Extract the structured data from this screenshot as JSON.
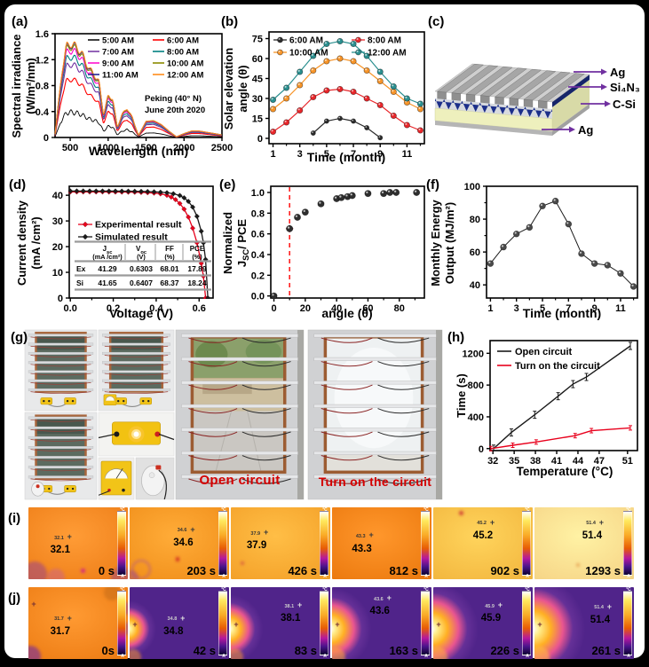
{
  "figure": {
    "bg": "#000000",
    "content_bg": "#ffffff"
  },
  "panels": {
    "a": {
      "label": "(a)"
    },
    "b": {
      "label": "(b)"
    },
    "c": {
      "label": "(c)"
    },
    "d": {
      "label": "(d)"
    },
    "e": {
      "label": "(e)"
    },
    "f": {
      "label": "(f)"
    },
    "g": {
      "label": "(g)"
    },
    "h": {
      "label": "(h)"
    },
    "i": {
      "label": "(i)"
    },
    "j": {
      "label": "(j)"
    }
  },
  "panel_c": {
    "layers": [
      {
        "name": "Ag"
      },
      {
        "name": "Si₄N₃"
      },
      {
        "name": "C-Si"
      },
      {
        "name": "Ag"
      }
    ],
    "arrow_color": "#7030a0",
    "colors": {
      "ridge": "#a6a6a6",
      "nitride": "#1c2f8a",
      "silicon": "#eef0bd",
      "bottom": "#b5b5b5"
    }
  },
  "panel_g": {
    "caption_open": "Open circuit",
    "caption_on": "Turn on the circuit",
    "caption_color": "#d40000"
  },
  "thermal": {
    "colorbar_top": "°C",
    "colorbar_bottom": "A"
  },
  "panel_i": {
    "frames": [
      {
        "temp": "32.1",
        "time": "0 s",
        "base": "#f0821c"
      },
      {
        "temp": "34.6",
        "time": "203 s",
        "base": "#f2921e"
      },
      {
        "temp": "37.9",
        "time": "426 s",
        "base": "#f5a42c"
      },
      {
        "temp": "43.3",
        "time": "812 s",
        "base": "#ee7d12"
      },
      {
        "temp": "45.2",
        "time": "902 s",
        "base": "#f4ba42"
      },
      {
        "temp": "51.4",
        "time": "1293 s",
        "base": "#f7d88a"
      }
    ]
  },
  "panel_j": {
    "frames": [
      {
        "temp": "31.7",
        "time": "0s",
        "base": "#ef8018",
        "style": "orange",
        "spot": 0
      },
      {
        "temp": "34.8",
        "time": "42 s",
        "base": "#50248a",
        "style": "hotspot",
        "spot": 20
      },
      {
        "temp": "38.1",
        "time": "83 s",
        "base": "#50248a",
        "style": "hotspot",
        "spot": 24
      },
      {
        "temp": "43.6",
        "time": "163 s",
        "base": "#50248a",
        "style": "hotspot",
        "spot": 29
      },
      {
        "temp": "45.9",
        "time": "226 s",
        "base": "#50248a",
        "style": "hotspot",
        "spot": 33
      },
      {
        "temp": "51.4",
        "time": "261 s",
        "base": "#50248a",
        "style": "hotspot",
        "spot": 37
      }
    ]
  },
  "chart_data": [
    {
      "id": "a",
      "type": "line",
      "xlabel": "Wavelength (nm)",
      "ylabel": [
        "Spectral irradiance",
        "(W/m²/nm)"
      ],
      "annotation": [
        "Peking (40° N)",
        "June 20th 2020"
      ],
      "xlim": [
        300,
        2500
      ],
      "ylim": [
        0,
        1.6
      ],
      "x_ticks": [
        "500",
        "1000",
        "1500",
        "2000",
        "2500"
      ],
      "y_ticks": [
        "0",
        "0.4",
        "0.8",
        "1.2",
        "1.6"
      ],
      "legend_position": "top-right-2col",
      "base_x": [
        300,
        350,
        400,
        450,
        500,
        550,
        600,
        650,
        700,
        760,
        820,
        880,
        940,
        1000,
        1060,
        1120,
        1180,
        1250,
        1320,
        1400,
        1500,
        1600,
        1700,
        1800,
        1900,
        2000,
        2100,
        2200,
        2350,
        2500
      ],
      "base_values": [
        0.05,
        0.6,
        1.1,
        1.4,
        1.45,
        1.42,
        1.38,
        1.3,
        1.18,
        1.04,
        0.97,
        0.85,
        0.35,
        0.64,
        0.6,
        0.15,
        0.35,
        0.45,
        0.3,
        0.03,
        0.25,
        0.26,
        0.2,
        0.1,
        0.01,
        0.06,
        0.1,
        0.1,
        0.07,
        0.04
      ],
      "series": [
        {
          "name": "5:00 AM",
          "color": "#000000",
          "scale": 0.27
        },
        {
          "name": "6:00 AM",
          "color": "#ff0000",
          "scale": 0.62
        },
        {
          "name": "7:00 AM",
          "color": "#7030a0",
          "scale": 0.78
        },
        {
          "name": "8:00 AM",
          "color": "#008080",
          "scale": 0.86
        },
        {
          "name": "9:00 AM",
          "color": "#ff00cc",
          "scale": 0.93
        },
        {
          "name": "10:00 AM",
          "color": "#8a8a00",
          "scale": 0.97
        },
        {
          "name": "11:00 AM",
          "color": "#16168c",
          "scale": 0.99
        },
        {
          "name": "12:00 AM",
          "color": "#ff8c1a",
          "scale": 1.0
        }
      ]
    },
    {
      "id": "b",
      "type": "line",
      "xlabel": "Time (month)",
      "ylabel": [
        "Solar elevation",
        "angle (θ)"
      ],
      "xlim": [
        0.7,
        12.3
      ],
      "ylim": [
        -4,
        80
      ],
      "x_ticks": [
        "1",
        "3",
        "5",
        "7",
        "9",
        "11"
      ],
      "x_minor": [
        2,
        4,
        6,
        8,
        10,
        12
      ],
      "y_ticks": [
        "0",
        "15",
        "30",
        "45",
        "60",
        "75"
      ],
      "categories": [
        1,
        2,
        3,
        4,
        5,
        6,
        7,
        8,
        9,
        10,
        11,
        12
      ],
      "series": [
        {
          "name": "6:00 AM",
          "color": "#2b2b2b",
          "values": [
            null,
            null,
            null,
            4,
            13,
            15,
            13,
            8,
            0.5,
            null,
            null,
            null
          ]
        },
        {
          "name": "8:00 AM",
          "color": "#e8262a",
          "values": [
            5,
            12,
            21,
            31,
            36,
            37,
            35,
            30,
            25,
            17,
            10,
            6
          ]
        },
        {
          "name": "10:00 AM",
          "color": "#f79428",
          "values": [
            22,
            30,
            40,
            51,
            58,
            60,
            58,
            51,
            43,
            35,
            27,
            22
          ]
        },
        {
          "name": "12:00 AM",
          "color": "#2a8f8f",
          "values": [
            29,
            38,
            50,
            62,
            71,
            73,
            71,
            62,
            50,
            39,
            30,
            26
          ]
        }
      ]
    },
    {
      "id": "d",
      "type": "line",
      "xlabel": "Voltage (V)",
      "ylabel": [
        "Current density",
        "(mA /cm²)"
      ],
      "xlim": [
        -0.005,
        0.665
      ],
      "ylim": [
        0,
        43.5
      ],
      "x_ticks": [
        "0.0",
        "0.2",
        "0.4",
        "0.6"
      ],
      "x_minor": [
        0.1,
        0.3,
        0.5
      ],
      "y_ticks": [
        "0",
        "10",
        "20",
        "30",
        "40"
      ],
      "series": [
        {
          "name": "Experimental result",
          "color": "#e8001c",
          "points": [
            [
              0,
              41.3
            ],
            [
              0.03,
              41.3
            ],
            [
              0.06,
              41.3
            ],
            [
              0.09,
              41.3
            ],
            [
              0.12,
              41.3
            ],
            [
              0.15,
              41.3
            ],
            [
              0.18,
              41.28
            ],
            [
              0.21,
              41.27
            ],
            [
              0.24,
              41.25
            ],
            [
              0.27,
              41.22
            ],
            [
              0.3,
              41.18
            ],
            [
              0.33,
              41.12
            ],
            [
              0.36,
              41.0
            ],
            [
              0.39,
              40.85
            ],
            [
              0.42,
              40.55
            ],
            [
              0.45,
              40.0
            ],
            [
              0.47,
              39.3
            ],
            [
              0.49,
              38.3
            ],
            [
              0.51,
              36.8
            ],
            [
              0.53,
              34.6
            ],
            [
              0.55,
              31.5
            ],
            [
              0.57,
              27.2
            ],
            [
              0.59,
              21.5
            ],
            [
              0.61,
              13.5
            ],
            [
              0.62,
              8.5
            ],
            [
              0.6303,
              0
            ]
          ]
        },
        {
          "name": "Simulated result",
          "color": "#1a1a1a",
          "points": [
            [
              0,
              41.65
            ],
            [
              0.03,
              41.65
            ],
            [
              0.06,
              41.65
            ],
            [
              0.09,
              41.65
            ],
            [
              0.12,
              41.64
            ],
            [
              0.15,
              41.64
            ],
            [
              0.18,
              41.63
            ],
            [
              0.21,
              41.62
            ],
            [
              0.24,
              41.6
            ],
            [
              0.27,
              41.58
            ],
            [
              0.3,
              41.55
            ],
            [
              0.33,
              41.5
            ],
            [
              0.36,
              41.44
            ],
            [
              0.39,
              41.35
            ],
            [
              0.42,
              41.2
            ],
            [
              0.45,
              41.0
            ],
            [
              0.48,
              40.6
            ],
            [
              0.51,
              39.9
            ],
            [
              0.53,
              39.0
            ],
            [
              0.55,
              37.6
            ],
            [
              0.57,
              35.4
            ],
            [
              0.59,
              31.8
            ],
            [
              0.61,
              26.0
            ],
            [
              0.62,
              21.5
            ],
            [
              0.63,
              15.0
            ],
            [
              0.6407,
              0
            ]
          ]
        }
      ],
      "table": {
        "header_top": [
          "J_[sc]",
          "V_[oc]",
          "FF",
          "PCE"
        ],
        "header_bottom": [
          "(mA /cm²)",
          "(V)",
          "(%)",
          "(%)"
        ],
        "rows": [
          {
            "name": "Ex",
            "values": [
              "41.29",
              "0.6303",
              "68.01",
              "17.89"
            ]
          },
          {
            "name": "Si",
            "values": [
              "41.65",
              "0.6407",
              "68.37",
              "18.24"
            ]
          }
        ]
      }
    },
    {
      "id": "e",
      "type": "scatter",
      "xlabel": "angle (θ)",
      "ylabel": [
        "Normalized",
        "J_[SC]/ PCE"
      ],
      "xlim": [
        -2,
        96
      ],
      "ylim": [
        -0.02,
        1.06
      ],
      "x_ticks": [
        "0",
        "20",
        "40",
        "60",
        "80"
      ],
      "x_minor": [
        10,
        30,
        50,
        70,
        90
      ],
      "y_ticks": [
        "0.0",
        "0.2",
        "0.4",
        "0.6",
        "0.8",
        "1.0"
      ],
      "vline_x": 10,
      "vline_color": "#ff2020",
      "points": [
        [
          0,
          0
        ],
        [
          10,
          0.65
        ],
        [
          15,
          0.76
        ],
        [
          20,
          0.81
        ],
        [
          30,
          0.89
        ],
        [
          40,
          0.94
        ],
        [
          43,
          0.95
        ],
        [
          47,
          0.96
        ],
        [
          50,
          0.97
        ],
        [
          60,
          0.99
        ],
        [
          70,
          0.99
        ],
        [
          74,
          1.0
        ],
        [
          78,
          1.0
        ],
        [
          91,
          1.0
        ]
      ]
    },
    {
      "id": "f",
      "type": "line",
      "xlabel": "Time (month)",
      "ylabel": [
        "Monthly Energy",
        "Output (MJ/m²)"
      ],
      "xlim": [
        0.7,
        12.3
      ],
      "ylim": [
        32,
        100
      ],
      "x_ticks": [
        "1",
        "3",
        "5",
        "7",
        "9",
        "11"
      ],
      "x_minor": [
        2,
        4,
        6,
        8,
        10,
        12
      ],
      "y_ticks": [
        "40",
        "60",
        "80",
        "100"
      ],
      "y_minor": [
        50,
        70,
        90
      ],
      "categories": [
        1,
        2,
        3,
        4,
        5,
        6,
        7,
        8,
        9,
        10,
        11,
        12
      ],
      "values": [
        53,
        63,
        71,
        75,
        88,
        91,
        77,
        59,
        53,
        52,
        47,
        39
      ]
    },
    {
      "id": "h",
      "type": "line",
      "xlabel": "Temperature (°C)",
      "ylabel": [
        "Time (s)"
      ],
      "xlim": [
        31.6,
        52.4
      ],
      "ylim": [
        -25,
        1360
      ],
      "x_ticks": [
        "32",
        "35",
        "38",
        "41",
        "44",
        "47",
        "51"
      ],
      "y_ticks": [
        "0",
        "400",
        "800",
        "1200"
      ],
      "series": [
        {
          "name": "Open circuit",
          "color": "#1a1a1a",
          "points": [
            [
              32.1,
              0
            ],
            [
              34.6,
              203
            ],
            [
              37.9,
              426
            ],
            [
              41.2,
              660
            ],
            [
              43.3,
              812
            ],
            [
              45.2,
              902
            ],
            [
              51.4,
              1293
            ]
          ]
        },
        {
          "name": "Turn on the circuit",
          "color": "#e8001c",
          "points": [
            [
              31.7,
              0
            ],
            [
              34.8,
              42
            ],
            [
              38.1,
              83
            ],
            [
              43.6,
              163
            ],
            [
              45.9,
              226
            ],
            [
              51.4,
              261
            ]
          ]
        }
      ]
    }
  ]
}
